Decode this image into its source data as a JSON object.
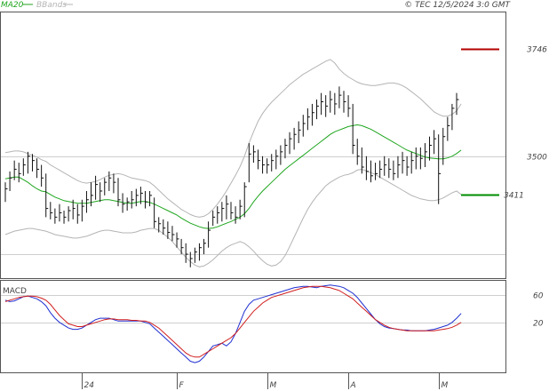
{
  "header": {
    "legend": [
      {
        "label": "MA20",
        "color": "#1fa61f"
      },
      {
        "label": "BBands",
        "color": "#b4b4b4"
      }
    ],
    "copyright": "© TEC 12/5/2024 3:0 GMT"
  },
  "chart_data": [
    {
      "type": "line",
      "panel": "price",
      "ylim": [
        3220,
        3830
      ],
      "yticks": [
        {
          "value": 3500,
          "label": "3500"
        }
      ],
      "x_labels": [
        {
          "index": 17,
          "label": "24"
        },
        {
          "index": 38,
          "label": "F"
        },
        {
          "index": 58,
          "label": "M"
        },
        {
          "index": 76,
          "label": "A"
        },
        {
          "index": 96,
          "label": "M"
        }
      ],
      "levels": [
        {
          "label": "3746",
          "value": 3746,
          "color": "#b30000"
        },
        {
          "label": "3411",
          "value": 3411,
          "color": "#008c00"
        }
      ],
      "bars": [
        [
          3440,
          3395,
          3425
        ],
        [
          3465,
          3420,
          3450
        ],
        [
          3490,
          3445,
          3470
        ],
        [
          3485,
          3440,
          3460
        ],
        [
          3495,
          3455,
          3480
        ],
        [
          3510,
          3460,
          3500
        ],
        [
          3505,
          3465,
          3490
        ],
        [
          3495,
          3450,
          3470
        ],
        [
          3480,
          3430,
          3450
        ],
        [
          3460,
          3360,
          3380
        ],
        [
          3395,
          3355,
          3370
        ],
        [
          3380,
          3345,
          3360
        ],
        [
          3390,
          3350,
          3370
        ],
        [
          3375,
          3345,
          3360
        ],
        [
          3385,
          3350,
          3375
        ],
        [
          3400,
          3355,
          3380
        ],
        [
          3390,
          3345,
          3365
        ],
        [
          3400,
          3350,
          3385
        ],
        [
          3420,
          3370,
          3400
        ],
        [
          3440,
          3385,
          3410
        ],
        [
          3455,
          3400,
          3435
        ],
        [
          3440,
          3395,
          3420
        ],
        [
          3450,
          3410,
          3440
        ],
        [
          3465,
          3420,
          3450
        ],
        [
          3460,
          3415,
          3440
        ],
        [
          3450,
          3385,
          3400
        ],
        [
          3415,
          3370,
          3390
        ],
        [
          3405,
          3375,
          3395
        ],
        [
          3420,
          3380,
          3400
        ],
        [
          3425,
          3385,
          3410
        ],
        [
          3430,
          3390,
          3415
        ],
        [
          3420,
          3380,
          3395
        ],
        [
          3420,
          3385,
          3410
        ],
        [
          3405,
          3335,
          3350
        ],
        [
          3360,
          3325,
          3345
        ],
        [
          3355,
          3320,
          3335
        ],
        [
          3350,
          3310,
          3325
        ],
        [
          3340,
          3305,
          3320
        ],
        [
          3325,
          3290,
          3310
        ],
        [
          3310,
          3275,
          3290
        ],
        [
          3300,
          3255,
          3275
        ],
        [
          3280,
          3245,
          3265
        ],
        [
          3290,
          3255,
          3280
        ],
        [
          3300,
          3260,
          3290
        ],
        [
          3310,
          3275,
          3300
        ],
        [
          3350,
          3290,
          3330
        ],
        [
          3375,
          3340,
          3360
        ],
        [
          3385,
          3345,
          3370
        ],
        [
          3395,
          3350,
          3380
        ],
        [
          3410,
          3355,
          3390
        ],
        [
          3395,
          3355,
          3370
        ],
        [
          3385,
          3345,
          3360
        ],
        [
          3400,
          3355,
          3385
        ],
        [
          3440,
          3360,
          3430
        ],
        [
          3530,
          3440,
          3505
        ],
        [
          3525,
          3485,
          3510
        ],
        [
          3515,
          3470,
          3490
        ],
        [
          3500,
          3460,
          3480
        ],
        [
          3495,
          3460,
          3480
        ],
        [
          3505,
          3465,
          3490
        ],
        [
          3515,
          3470,
          3500
        ],
        [
          3525,
          3480,
          3510
        ],
        [
          3540,
          3495,
          3525
        ],
        [
          3555,
          3505,
          3540
        ],
        [
          3565,
          3515,
          3550
        ],
        [
          3580,
          3530,
          3560
        ],
        [
          3595,
          3545,
          3575
        ],
        [
          3610,
          3560,
          3590
        ],
        [
          3620,
          3570,
          3600
        ],
        [
          3630,
          3585,
          3615
        ],
        [
          3645,
          3595,
          3625
        ],
        [
          3640,
          3590,
          3615
        ],
        [
          3650,
          3600,
          3630
        ],
        [
          3645,
          3595,
          3620
        ],
        [
          3660,
          3610,
          3640
        ],
        [
          3650,
          3600,
          3625
        ],
        [
          3640,
          3590,
          3610
        ],
        [
          3620,
          3505,
          3525
        ],
        [
          3540,
          3480,
          3500
        ],
        [
          3520,
          3460,
          3475
        ],
        [
          3500,
          3445,
          3465
        ],
        [
          3490,
          3440,
          3455
        ],
        [
          3485,
          3445,
          3460
        ],
        [
          3490,
          3450,
          3470
        ],
        [
          3500,
          3455,
          3480
        ],
        [
          3495,
          3450,
          3470
        ],
        [
          3490,
          3445,
          3460
        ],
        [
          3500,
          3450,
          3480
        ],
        [
          3510,
          3460,
          3490
        ],
        [
          3500,
          3455,
          3475
        ],
        [
          3510,
          3460,
          3490
        ],
        [
          3520,
          3470,
          3500
        ],
        [
          3520,
          3470,
          3495
        ],
        [
          3530,
          3475,
          3510
        ],
        [
          3545,
          3490,
          3525
        ],
        [
          3560,
          3505,
          3540
        ],
        [
          3550,
          3390,
          3460
        ],
        [
          3565,
          3480,
          3545
        ],
        [
          3590,
          3535,
          3570
        ],
        [
          3620,
          3560,
          3610
        ],
        [
          3645,
          3595,
          3630
        ]
      ],
      "series": [
        {
          "name": "MA20",
          "color": "#1fa61f",
          "values": [
            3448,
            3450,
            3452,
            3452,
            3446,
            3440,
            3432,
            3425,
            3420,
            3418,
            3412,
            3406,
            3402,
            3398,
            3396,
            3394,
            3392,
            3392,
            3392,
            3394,
            3396,
            3398,
            3400,
            3400,
            3398,
            3396,
            3394,
            3392,
            3392,
            3394,
            3396,
            3396,
            3394,
            3390,
            3385,
            3380,
            3375,
            3370,
            3365,
            3358,
            3352,
            3346,
            3342,
            3338,
            3335,
            3334,
            3335,
            3338,
            3342,
            3346,
            3350,
            3355,
            3360,
            3368,
            3380,
            3395,
            3408,
            3420,
            3430,
            3440,
            3450,
            3460,
            3470,
            3478,
            3486,
            3494,
            3502,
            3510,
            3518,
            3526,
            3534,
            3542,
            3550,
            3556,
            3560,
            3564,
            3568,
            3570,
            3572,
            3570,
            3566,
            3562,
            3556,
            3550,
            3544,
            3538,
            3532,
            3526,
            3520,
            3514,
            3510,
            3506,
            3502,
            3498,
            3496,
            3495,
            3494,
            3494,
            3496,
            3500,
            3506,
            3514
          ]
        },
        {
          "name": "upper",
          "color": "#b4b4b4",
          "values": [
            3508,
            3510,
            3512,
            3512,
            3510,
            3506,
            3502,
            3498,
            3492,
            3488,
            3480,
            3474,
            3468,
            3462,
            3456,
            3450,
            3444,
            3440,
            3438,
            3440,
            3442,
            3446,
            3452,
            3456,
            3458,
            3460,
            3458,
            3454,
            3450,
            3448,
            3446,
            3444,
            3440,
            3432,
            3422,
            3412,
            3402,
            3394,
            3386,
            3378,
            3372,
            3366,
            3362,
            3360,
            3362,
            3368,
            3378,
            3390,
            3404,
            3420,
            3438,
            3456,
            3476,
            3500,
            3530,
            3556,
            3580,
            3598,
            3612,
            3624,
            3634,
            3644,
            3654,
            3664,
            3672,
            3680,
            3688,
            3694,
            3700,
            3706,
            3712,
            3718,
            3722,
            3714,
            3700,
            3690,
            3682,
            3676,
            3670,
            3666,
            3664,
            3662,
            3662,
            3664,
            3666,
            3668,
            3668,
            3666,
            3662,
            3656,
            3648,
            3640,
            3632,
            3622,
            3612,
            3602,
            3596,
            3592,
            3592,
            3596,
            3604,
            3620
          ]
        },
        {
          "name": "lower",
          "color": "#b4b4b4",
          "values": [
            3320,
            3324,
            3328,
            3330,
            3332,
            3334,
            3334,
            3332,
            3330,
            3328,
            3324,
            3320,
            3318,
            3316,
            3314,
            3312,
            3312,
            3314,
            3316,
            3320,
            3324,
            3328,
            3330,
            3330,
            3328,
            3326,
            3324,
            3324,
            3324,
            3326,
            3330,
            3332,
            3334,
            3334,
            3330,
            3322,
            3314,
            3304,
            3292,
            3280,
            3268,
            3258,
            3250,
            3246,
            3248,
            3254,
            3262,
            3272,
            3282,
            3290,
            3296,
            3300,
            3304,
            3300,
            3292,
            3282,
            3270,
            3260,
            3252,
            3248,
            3250,
            3258,
            3272,
            3292,
            3314,
            3336,
            3358,
            3378,
            3394,
            3408,
            3420,
            3432,
            3440,
            3446,
            3452,
            3456,
            3458,
            3462,
            3468,
            3470,
            3466,
            3462,
            3458,
            3452,
            3446,
            3440,
            3434,
            3428,
            3422,
            3416,
            3410,
            3406,
            3402,
            3400,
            3398,
            3398,
            3400,
            3404,
            3410,
            3416,
            3420,
            3412
          ]
        }
      ]
    },
    {
      "type": "line",
      "panel": "macd",
      "title": "MACD",
      "ylim": [
        -52,
        80
      ],
      "yticks": [
        {
          "value": 60,
          "label": "60"
        },
        {
          "value": 20,
          "label": "20"
        }
      ],
      "series": [
        {
          "name": "macd",
          "color": "#1f2fd1",
          "values": [
            52,
            50,
            51,
            54,
            57,
            58,
            56,
            54,
            50,
            44,
            34,
            26,
            20,
            16,
            12,
            10,
            10,
            12,
            16,
            20,
            24,
            26,
            26,
            26,
            24,
            22,
            22,
            22,
            22,
            22,
            22,
            20,
            18,
            12,
            6,
            0,
            -6,
            -12,
            -18,
            -24,
            -30,
            -36,
            -38,
            -36,
            -30,
            -22,
            -14,
            -12,
            -10,
            -14,
            -8,
            4,
            20,
            36,
            46,
            52,
            54,
            56,
            58,
            60,
            62,
            64,
            66,
            68,
            70,
            71,
            72,
            72,
            71,
            70,
            72,
            73,
            74,
            73,
            72,
            70,
            66,
            62,
            56,
            48,
            40,
            32,
            24,
            18,
            14,
            12,
            11,
            10,
            9,
            9,
            8,
            8,
            8,
            8,
            9,
            10,
            12,
            14,
            16,
            20,
            26,
            33
          ]
        },
        {
          "name": "signal",
          "color": "#d11f1f",
          "values": [
            50,
            52,
            54,
            56,
            57,
            58,
            58,
            57,
            55,
            52,
            46,
            38,
            30,
            24,
            18,
            16,
            14,
            14,
            16,
            18,
            20,
            22,
            24,
            25,
            25,
            24,
            24,
            24,
            23,
            23,
            22,
            22,
            20,
            16,
            12,
            6,
            0,
            -6,
            -12,
            -18,
            -24,
            -28,
            -30,
            -30,
            -26,
            -22,
            -18,
            -14,
            -10,
            -6,
            -2,
            4,
            12,
            20,
            28,
            36,
            42,
            48,
            52,
            56,
            58,
            60,
            62,
            64,
            66,
            68,
            70,
            71,
            72,
            72,
            72,
            71,
            70,
            68,
            66,
            62,
            58,
            54,
            48,
            42,
            36,
            30,
            24,
            20,
            16,
            13,
            11,
            10,
            9,
            8,
            8,
            8,
            8,
            8,
            8,
            8,
            9,
            10,
            11,
            13,
            16,
            20
          ]
        }
      ]
    }
  ]
}
